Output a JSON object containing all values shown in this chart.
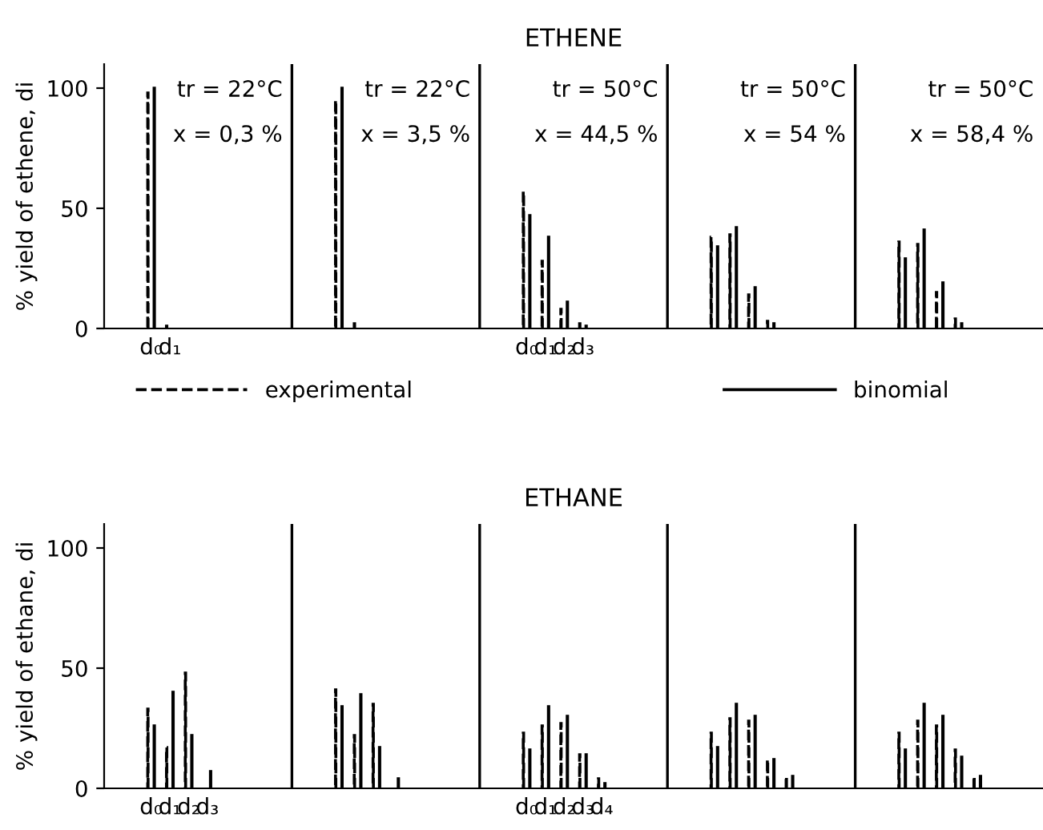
{
  "chart_data": [
    {
      "type": "bar",
      "title": "ETHENE",
      "ylabel": "% yield of ethene, di",
      "legend": "bottom",
      "categories": [
        null,
        null,
        "d₀",
        "d₁",
        null,
        null,
        null,
        null,
        null,
        null,
        null,
        null,
        null,
        null,
        null,
        null,
        null,
        null,
        null,
        null,
        null,
        null,
        "d₀",
        "d₁",
        "d₂",
        "d₃",
        null,
        null,
        null,
        null,
        null,
        null,
        null,
        null,
        null,
        null,
        null,
        null,
        null,
        null,
        null,
        null,
        null,
        null,
        null,
        null,
        null,
        null,
        null,
        null
      ],
      "ylim": [
        0,
        110
      ],
      "yticks": [
        0,
        50,
        100
      ],
      "annotations": [
        "tr = 22°C",
        "x = 0,3 %",
        "tr = 22°C",
        "x = 3,5 %",
        "tr = 50°C",
        "x = 44,5 %",
        "tr = 50°C",
        "x = 54 %",
        "tr = 50°C",
        "x = 58,4 %"
      ],
      "series": [
        {
          "name": "experimental",
          "color": "#000000",
          "line_style": "dashed",
          "values": [
            null,
            null,
            98,
            1,
            null,
            null,
            null,
            null,
            null,
            null,
            null,
            null,
            95,
            2,
            null,
            null,
            null,
            null,
            null,
            null,
            null,
            null,
            57,
            28,
            8,
            2,
            null,
            null,
            null,
            null,
            null,
            null,
            38,
            39,
            14,
            3,
            null,
            null,
            null,
            null,
            null,
            null,
            36,
            35,
            15,
            4,
            null,
            null,
            null,
            null
          ]
        },
        {
          "name": "binomial",
          "color": "#000000",
          "line_style": "solid",
          "values": [
            null,
            null,
            100,
            null,
            null,
            null,
            null,
            null,
            null,
            null,
            null,
            null,
            100,
            null,
            null,
            null,
            null,
            null,
            null,
            null,
            null,
            null,
            47,
            38,
            11,
            1,
            null,
            null,
            null,
            null,
            null,
            null,
            34,
            42,
            17,
            2,
            null,
            null,
            null,
            null,
            null,
            null,
            29,
            41,
            19,
            2,
            null,
            null,
            null,
            null
          ]
        }
      ]
    },
    {
      "type": "bar",
      "title": "ETHANE",
      "ylabel": "% yield of ethane, di",
      "categories": [
        null,
        null,
        "d₀",
        "d₁",
        "d₂",
        "d₃",
        null,
        null,
        null,
        null,
        null,
        null,
        null,
        null,
        null,
        null,
        null,
        null,
        null,
        null,
        null,
        null,
        "d₀",
        "d₁",
        "d₂",
        "d₃",
        "d₄",
        null,
        null,
        null,
        null,
        null,
        null,
        null,
        null,
        null,
        null,
        null,
        null,
        null,
        null,
        null,
        null,
        null,
        null,
        null,
        null,
        null,
        null,
        null
      ],
      "ylim": [
        0,
        110
      ],
      "yticks": [
        0,
        50,
        100
      ],
      "series": [
        {
          "color": "#000000",
          "line_style": "dashed",
          "values": [
            null,
            null,
            33,
            17,
            48,
            null,
            null,
            null,
            null,
            null,
            null,
            null,
            41,
            22,
            35,
            null,
            null,
            null,
            null,
            null,
            null,
            null,
            23,
            26,
            27,
            14,
            4,
            null,
            null,
            null,
            null,
            null,
            23,
            29,
            28,
            12,
            5,
            null,
            null,
            null,
            null,
            null,
            23,
            28,
            26,
            16,
            5,
            null,
            null,
            null
          ]
        },
        {
          "color": "#000000",
          "line_style": "solid",
          "values": [
            null,
            null,
            26,
            40,
            22,
            7,
            null,
            null,
            null,
            null,
            null,
            null,
            34,
            39,
            17,
            4,
            null,
            null,
            null,
            null,
            null,
            null,
            16,
            34,
            30,
            14,
            2,
            null,
            null,
            null,
            null,
            null,
            17,
            35,
            30,
            12,
            5,
            null,
            null,
            null,
            null,
            null,
            16,
            35,
            30,
            13,
            5,
            null,
            null,
            null
          ]
        }
      ]
    }
  ]
}
